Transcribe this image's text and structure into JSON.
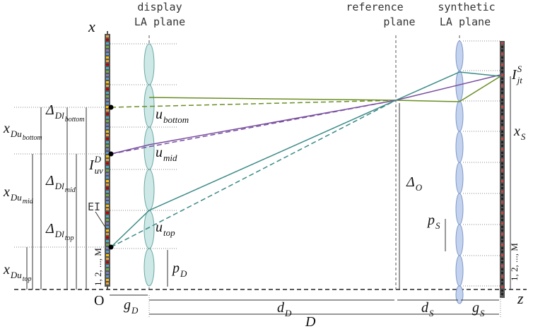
{
  "headers": {
    "display": [
      "display",
      "LA plane"
    ],
    "reference": [
      "reference",
      "plane"
    ],
    "synthetic": [
      "synthetic",
      "LA plane"
    ]
  },
  "axes": {
    "x": "x",
    "z": "z",
    "origin": "O"
  },
  "ei": "EI",
  "index_left": "1, 2, ..., M",
  "index_right": "1, 2, ..., M",
  "labels": [
    {
      "base": "x",
      "sub": "Du",
      "subsub": "bottom"
    },
    {
      "base": "Δ",
      "sub": "Dl",
      "subsub": "bottom"
    },
    {
      "base": "I",
      "sub": "uv",
      "sup": "D"
    },
    {
      "base": "x",
      "sub": "Du",
      "subsub": "mid"
    },
    {
      "base": "Δ",
      "sub": "Dl",
      "subsub": "mid"
    },
    {
      "base": "Δ",
      "sub": "Dl",
      "subsub": "top"
    },
    {
      "base": "x",
      "sub": "Du",
      "subsub": "top"
    },
    {
      "base": "u",
      "sub": "bottom"
    },
    {
      "base": "u",
      "sub": "mid"
    },
    {
      "base": "u",
      "sub": "top"
    },
    {
      "base": "p",
      "sub": "D"
    },
    {
      "base": "g",
      "sub": "D"
    },
    {
      "base": "d",
      "sub": "D"
    },
    {
      "base": "D"
    },
    {
      "base": "d",
      "sub": "S"
    },
    {
      "base": "g",
      "sub": "S"
    },
    {
      "base": "Δ",
      "sub": "O"
    },
    {
      "base": "p",
      "sub": "S"
    },
    {
      "base": "x",
      "sub": "S"
    },
    {
      "base": "I",
      "sub": "jt",
      "sup": "S"
    }
  ]
}
